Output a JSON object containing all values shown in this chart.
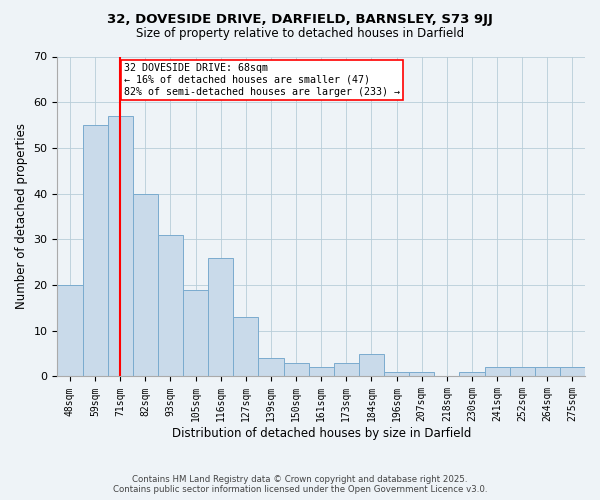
{
  "title1": "32, DOVESIDE DRIVE, DARFIELD, BARNSLEY, S73 9JJ",
  "title2": "Size of property relative to detached houses in Darfield",
  "xlabel": "Distribution of detached houses by size in Darfield",
  "ylabel": "Number of detached properties",
  "categories": [
    "48sqm",
    "59sqm",
    "71sqm",
    "82sqm",
    "93sqm",
    "105sqm",
    "116sqm",
    "127sqm",
    "139sqm",
    "150sqm",
    "161sqm",
    "173sqm",
    "184sqm",
    "196sqm",
    "207sqm",
    "218sqm",
    "230sqm",
    "241sqm",
    "252sqm",
    "264sqm",
    "275sqm"
  ],
  "values": [
    20,
    55,
    57,
    40,
    31,
    19,
    26,
    13,
    4,
    3,
    2,
    3,
    5,
    1,
    1,
    0,
    1,
    2,
    2,
    2,
    2
  ],
  "bar_color": "#c9daea",
  "bar_edge_color": "#7aabce",
  "red_line_index": 2,
  "annotation_title": "32 DOVESIDE DRIVE: 68sqm",
  "annotation_line1": "← 16% of detached houses are smaller (47)",
  "annotation_line2": "82% of semi-detached houses are larger (233) →",
  "ylim": [
    0,
    70
  ],
  "yticks": [
    0,
    10,
    20,
    30,
    40,
    50,
    60,
    70
  ],
  "footnote1": "Contains HM Land Registry data © Crown copyright and database right 2025.",
  "footnote2": "Contains public sector information licensed under the Open Government Licence v3.0.",
  "bg_color": "#eef3f7"
}
